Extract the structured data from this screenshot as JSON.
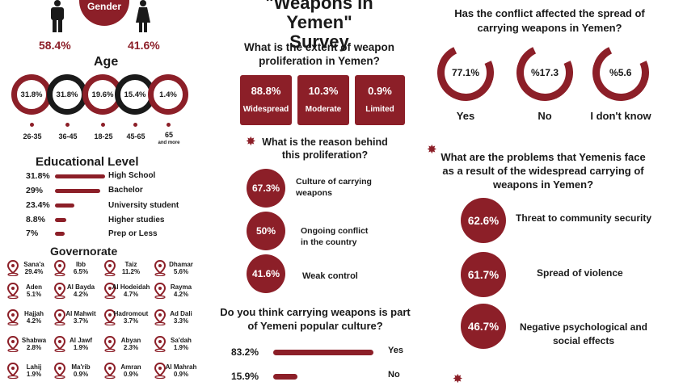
{
  "gender": {
    "label": "Gender",
    "male_pct": "58.4%",
    "female_pct": "41.6%"
  },
  "age": {
    "title": "Age",
    "groups": [
      {
        "value": "31.8%",
        "label": "26-35",
        "note": ""
      },
      {
        "value": "31.8%",
        "label": "36-45",
        "note": ""
      },
      {
        "value": "19.6%",
        "label": "18-25",
        "note": ""
      },
      {
        "value": "15.4%",
        "label": "45-65",
        "note": ""
      },
      {
        "value": "1.4%",
        "label": "65",
        "note": "and more"
      }
    ]
  },
  "education": {
    "title": "Educational Level",
    "rows": [
      {
        "value": "31.8%",
        "label": "High School",
        "pct": 31.8
      },
      {
        "value": "29%",
        "label": "Bachelor",
        "pct": 29
      },
      {
        "value": "23.4%",
        "label": "University student",
        "pct": 23.4
      },
      {
        "value": "8.8%",
        "label": "Higher studies",
        "pct": 8.8
      },
      {
        "value": "7%",
        "label": "Prep or Less",
        "pct": 7
      }
    ]
  },
  "governorate": {
    "title": "Governorate",
    "items": [
      {
        "name": "Sana'a",
        "value": "29.4%"
      },
      {
        "name": "Ibb",
        "value": "6.5%"
      },
      {
        "name": "Taiz",
        "value": "11.2%"
      },
      {
        "name": "Dhamar",
        "value": "5.6%"
      },
      {
        "name": "Aden",
        "value": "5.1%"
      },
      {
        "name": "Al Bayda",
        "value": "4.2%"
      },
      {
        "name": "Al Hodeidah",
        "value": "4.7%"
      },
      {
        "name": "Rayma",
        "value": "4.2%"
      },
      {
        "name": "Hajjah",
        "value": "4.2%"
      },
      {
        "name": "Al Mahwit",
        "value": "3.7%"
      },
      {
        "name": "Hadromout",
        "value": "3.7%"
      },
      {
        "name": "Ad Dali",
        "value": "3.3%"
      },
      {
        "name": "Shabwa",
        "value": "2.8%"
      },
      {
        "name": "Al Jawf",
        "value": "1.9%"
      },
      {
        "name": "Abyan",
        "value": "2.3%"
      },
      {
        "name": "Sa'dah",
        "value": "1.9%"
      },
      {
        "name": "Lahij",
        "value": "1.9%"
      },
      {
        "name": "Ma'rib",
        "value": "0.9%"
      },
      {
        "name": "Amran",
        "value": "0.9%"
      },
      {
        "name": "Al Mahrah",
        "value": "0.9%"
      }
    ]
  },
  "survey": {
    "title_line1": "\"Weapons in Yemen\"",
    "title_line2": "Survey",
    "q1": "What is the extent of weapon proliferation in Yemen?",
    "extent": [
      {
        "value": "88.8%",
        "label": "Widespread"
      },
      {
        "value": "10.3%",
        "label": "Moderate"
      },
      {
        "value": "0.9%",
        "label": "Limited"
      }
    ],
    "q2": "What is the reason behind this proliferation?",
    "reasons": [
      {
        "value": "67.3%",
        "label": "Culture of carrying weapons"
      },
      {
        "value": "50%",
        "label": "Ongoing conflict in the country"
      },
      {
        "value": "41.6%",
        "label": "Weak control"
      }
    ],
    "q3": "Do you think carrying weapons is part of Yemeni popular culture?",
    "culture": [
      {
        "value": "83.2%",
        "label": "Yes",
        "pct": 83.2
      },
      {
        "value": "15.9%",
        "label": "No",
        "pct": 15.9
      }
    ]
  },
  "spread": {
    "question": "Has the conflict affected the spread of carrying weapons in Yemen?",
    "answers": [
      {
        "value": "77.1%",
        "label": "Yes"
      },
      {
        "value": "%17.3",
        "label": "No"
      },
      {
        "value": "%5.6",
        "label": "I don't know"
      }
    ]
  },
  "problems": {
    "question": "What are the problems that Yemenis face as a result of the widespread carrying of weapons in Yemen?",
    "items": [
      {
        "value": "62.6%",
        "label": "Threat to community security"
      },
      {
        "value": "61.7%",
        "label": "Spread of violence"
      },
      {
        "value": "46.7%",
        "label": "Negative psychological and social effects"
      }
    ]
  },
  "colors": {
    "accent": "#8c1f28",
    "dark": "#1a1a1a"
  }
}
